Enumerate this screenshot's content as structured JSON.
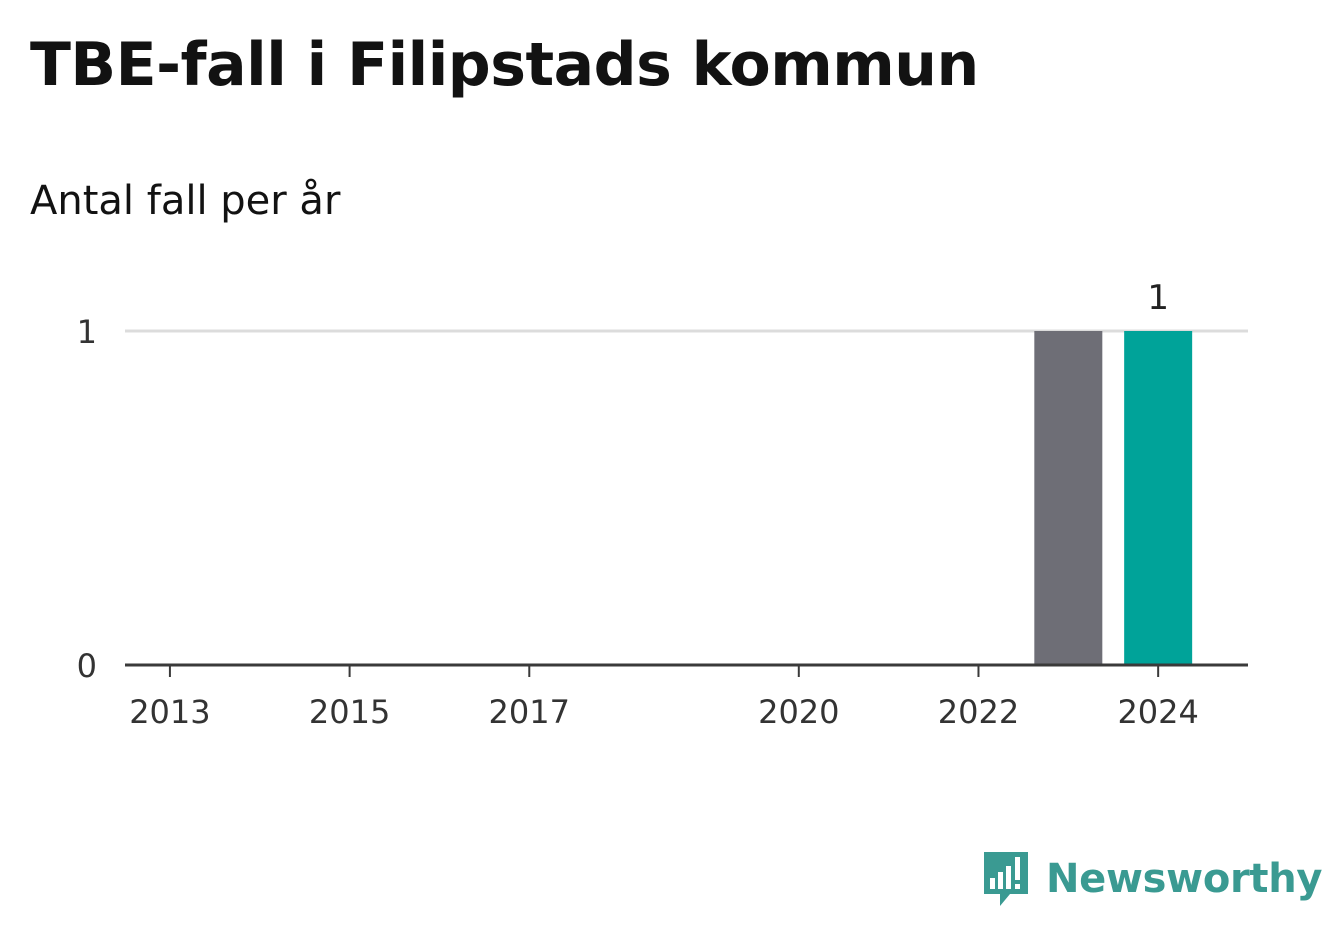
{
  "title": "TBE-fall i Filipstads kommun",
  "subtitle": "Antal fall per år",
  "brand": {
    "name": "Newsworthy",
    "color": "#3a9a92",
    "icon": "newsworthy-logo-icon"
  },
  "chart_data": {
    "type": "bar",
    "title": "TBE-fall i Filipstads kommun",
    "subtitle": "Antal fall per år",
    "xlabel": "",
    "ylabel": "",
    "x": [
      2013,
      2014,
      2015,
      2016,
      2017,
      2018,
      2019,
      2020,
      2021,
      2022,
      2023,
      2024
    ],
    "values": [
      0,
      0,
      0,
      0,
      0,
      null,
      null,
      0,
      0,
      0,
      1,
      1
    ],
    "bar_colors": {
      "2023": "#6e6e76",
      "2024": "#00a399"
    },
    "x_ticks": [
      "2013",
      "2015",
      "2017",
      "2020",
      "2022",
      "2024"
    ],
    "y_ticks": [
      "0",
      "1"
    ],
    "ylim": [
      0,
      1
    ],
    "data_labels": [
      {
        "x": 2024,
        "text": "1"
      }
    ],
    "grid": true
  }
}
